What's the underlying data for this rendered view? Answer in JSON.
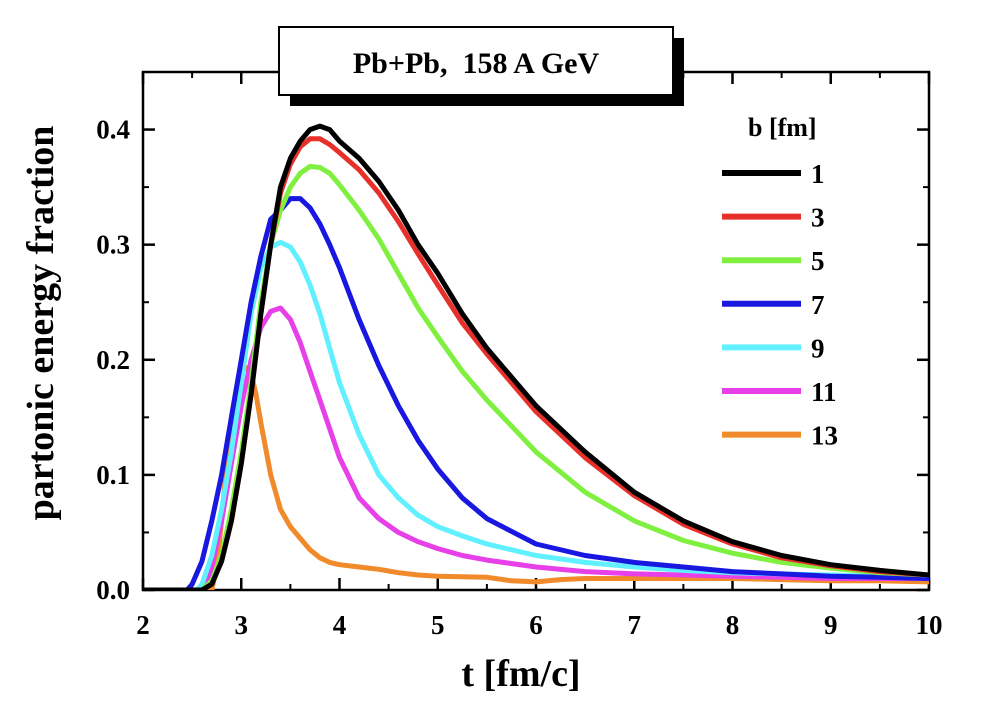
{
  "chart_data": {
    "type": "line",
    "title": "Pb+Pb,  158 A GeV",
    "xlabel": "t [fm/c]",
    "ylabel": "partonic energy fraction",
    "xlim": [
      2,
      10
    ],
    "ylim": [
      0,
      0.45
    ],
    "x_ticks": [
      2,
      3,
      4,
      5,
      6,
      7,
      8,
      9,
      10
    ],
    "x_tick_labels": [
      "2",
      "3",
      "4",
      "5",
      "6",
      "7",
      "8",
      "9",
      "10"
    ],
    "y_ticks": [
      0.0,
      0.1,
      0.2,
      0.3,
      0.4
    ],
    "y_tick_labels": [
      "0.0",
      "0.1",
      "0.2",
      "0.3",
      "0.4"
    ],
    "legend_title": "b [fm]",
    "legend_position": "top-right",
    "series": [
      {
        "name": "1",
        "color": "#000000",
        "x": [
          2.0,
          2.6,
          2.7,
          2.8,
          2.9,
          3.0,
          3.1,
          3.2,
          3.3,
          3.4,
          3.5,
          3.6,
          3.7,
          3.8,
          3.9,
          4.0,
          4.2,
          4.4,
          4.6,
          4.8,
          5.0,
          5.25,
          5.5,
          6.0,
          6.5,
          7.0,
          7.5,
          8.0,
          8.5,
          9.0,
          9.5,
          10.0
        ],
        "y": [
          0.0,
          0.0,
          0.005,
          0.025,
          0.06,
          0.11,
          0.17,
          0.24,
          0.3,
          0.35,
          0.375,
          0.39,
          0.4,
          0.403,
          0.4,
          0.39,
          0.375,
          0.355,
          0.33,
          0.3,
          0.275,
          0.24,
          0.21,
          0.16,
          0.12,
          0.085,
          0.06,
          0.042,
          0.03,
          0.022,
          0.017,
          0.013
        ]
      },
      {
        "name": "3",
        "color": "#e8302a",
        "x": [
          2.0,
          2.6,
          2.7,
          2.8,
          2.9,
          3.0,
          3.1,
          3.2,
          3.3,
          3.4,
          3.5,
          3.6,
          3.7,
          3.8,
          3.9,
          4.0,
          4.2,
          4.4,
          4.6,
          4.8,
          5.0,
          5.25,
          5.5,
          6.0,
          6.5,
          7.0,
          7.5,
          8.0,
          8.5,
          9.0,
          9.5,
          10.0
        ],
        "y": [
          0.0,
          0.0,
          0.005,
          0.025,
          0.06,
          0.11,
          0.17,
          0.24,
          0.3,
          0.345,
          0.37,
          0.385,
          0.392,
          0.392,
          0.387,
          0.38,
          0.365,
          0.345,
          0.32,
          0.292,
          0.265,
          0.232,
          0.205,
          0.155,
          0.115,
          0.082,
          0.057,
          0.04,
          0.028,
          0.021,
          0.016,
          0.013
        ]
      },
      {
        "name": "5",
        "color": "#80f040",
        "x": [
          2.0,
          2.6,
          2.7,
          2.8,
          2.9,
          3.0,
          3.1,
          3.2,
          3.3,
          3.4,
          3.5,
          3.6,
          3.7,
          3.8,
          3.9,
          4.0,
          4.2,
          4.4,
          4.6,
          4.8,
          5.0,
          5.25,
          5.5,
          6.0,
          6.5,
          7.0,
          7.5,
          8.0,
          8.5,
          9.0,
          9.5,
          10.0
        ],
        "y": [
          0.0,
          0.0,
          0.008,
          0.03,
          0.07,
          0.12,
          0.18,
          0.25,
          0.3,
          0.33,
          0.35,
          0.362,
          0.368,
          0.367,
          0.362,
          0.352,
          0.33,
          0.305,
          0.275,
          0.245,
          0.22,
          0.19,
          0.165,
          0.12,
          0.085,
          0.06,
          0.043,
          0.032,
          0.024,
          0.019,
          0.015,
          0.013
        ]
      },
      {
        "name": "7",
        "color": "#1818e0",
        "x": [
          2.0,
          2.45,
          2.5,
          2.6,
          2.7,
          2.8,
          2.9,
          3.0,
          3.1,
          3.2,
          3.3,
          3.4,
          3.5,
          3.6,
          3.7,
          3.8,
          3.9,
          4.0,
          4.2,
          4.4,
          4.6,
          4.8,
          5.0,
          5.25,
          5.5,
          6.0,
          6.5,
          7.0,
          7.5,
          8.0,
          8.5,
          9.0,
          9.5,
          10.0
        ],
        "y": [
          0.0,
          0.0,
          0.005,
          0.025,
          0.06,
          0.1,
          0.15,
          0.2,
          0.25,
          0.29,
          0.322,
          0.33,
          0.34,
          0.34,
          0.332,
          0.318,
          0.3,
          0.28,
          0.235,
          0.195,
          0.16,
          0.13,
          0.105,
          0.08,
          0.062,
          0.04,
          0.03,
          0.024,
          0.02,
          0.016,
          0.014,
          0.012,
          0.011,
          0.01
        ]
      },
      {
        "name": "9",
        "color": "#60f0ff",
        "x": [
          2.0,
          2.55,
          2.6,
          2.7,
          2.8,
          2.9,
          3.0,
          3.1,
          3.2,
          3.3,
          3.4,
          3.5,
          3.6,
          3.7,
          3.8,
          3.9,
          4.0,
          4.2,
          4.4,
          4.6,
          4.8,
          5.0,
          5.25,
          5.5,
          6.0,
          6.5,
          7.0,
          7.5,
          8.0,
          8.5,
          9.0,
          9.5,
          10.0
        ],
        "y": [
          0.0,
          0.0,
          0.005,
          0.03,
          0.07,
          0.12,
          0.18,
          0.24,
          0.28,
          0.298,
          0.302,
          0.298,
          0.285,
          0.265,
          0.24,
          0.21,
          0.18,
          0.135,
          0.1,
          0.08,
          0.065,
          0.055,
          0.047,
          0.04,
          0.03,
          0.024,
          0.02,
          0.017,
          0.015,
          0.014,
          0.013,
          0.012,
          0.012
        ]
      },
      {
        "name": "11",
        "color": "#e840e8",
        "x": [
          2.0,
          2.6,
          2.65,
          2.7,
          2.8,
          2.9,
          3.0,
          3.1,
          3.2,
          3.3,
          3.4,
          3.5,
          3.6,
          3.7,
          3.8,
          3.9,
          4.0,
          4.2,
          4.4,
          4.6,
          4.8,
          5.0,
          5.25,
          5.5,
          6.0,
          6.5,
          7.0,
          7.5,
          8.0,
          8.5,
          9.0,
          9.5,
          10.0
        ],
        "y": [
          0.0,
          0.0,
          0.005,
          0.02,
          0.06,
          0.11,
          0.16,
          0.2,
          0.228,
          0.242,
          0.245,
          0.235,
          0.215,
          0.19,
          0.165,
          0.14,
          0.115,
          0.08,
          0.062,
          0.05,
          0.042,
          0.036,
          0.03,
          0.026,
          0.02,
          0.016,
          0.014,
          0.013,
          0.012,
          0.011,
          0.01,
          0.01,
          0.01
        ]
      },
      {
        "name": "13",
        "color": "#f08a2a",
        "x": [
          2.0,
          2.7,
          2.75,
          2.8,
          2.85,
          2.9,
          2.95,
          3.0,
          3.05,
          3.1,
          3.15,
          3.2,
          3.3,
          3.4,
          3.5,
          3.6,
          3.7,
          3.8,
          3.9,
          4.0,
          4.2,
          4.4,
          4.6,
          4.8,
          5.0,
          5.5,
          5.75,
          6.0,
          6.25,
          6.5,
          7.0,
          7.5,
          8.0,
          8.5,
          9.0,
          9.5,
          10.0
        ],
        "y": [
          0.0,
          0.0,
          0.02,
          0.06,
          0.11,
          0.15,
          0.175,
          0.19,
          0.193,
          0.188,
          0.17,
          0.145,
          0.1,
          0.07,
          0.055,
          0.045,
          0.035,
          0.028,
          0.024,
          0.022,
          0.02,
          0.018,
          0.015,
          0.013,
          0.012,
          0.011,
          0.008,
          0.007,
          0.009,
          0.01,
          0.01,
          0.01,
          0.01,
          0.009,
          0.008,
          0.008,
          0.007
        ]
      }
    ]
  }
}
